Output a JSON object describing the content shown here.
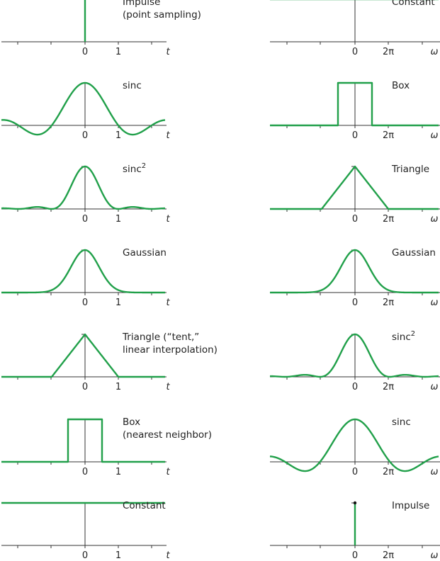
{
  "colors": {
    "curve": "#21a04a",
    "axis": "#333333",
    "text": "#222222"
  },
  "left_column": {
    "axis_variable": "t",
    "tick_labels": [
      "0",
      "1"
    ],
    "panels": [
      {
        "shape": "impulse",
        "title_lines": [
          "Impulse",
          "(point sampling)"
        ]
      },
      {
        "shape": "sinc",
        "title_lines": [
          "sinc"
        ]
      },
      {
        "shape": "sinc2",
        "title_lines": [
          "sinc",
          "2"
        ]
      },
      {
        "shape": "gaussian",
        "title_lines": [
          "Gaussian"
        ]
      },
      {
        "shape": "triangle",
        "title_lines": [
          "Triangle (“tent,”",
          "linear interpolation)"
        ]
      },
      {
        "shape": "box",
        "title_lines": [
          "Box",
          "(nearest neighbor)"
        ]
      },
      {
        "shape": "constant",
        "title_lines": [
          "Constant"
        ]
      }
    ]
  },
  "right_column": {
    "axis_variable": "ω",
    "tick_labels": [
      "0",
      "2π"
    ],
    "panels": [
      {
        "shape": "constant",
        "title_lines": [
          "Constant"
        ]
      },
      {
        "shape": "box",
        "title_lines": [
          "Box"
        ]
      },
      {
        "shape": "triangle",
        "title_lines": [
          "Triangle"
        ]
      },
      {
        "shape": "gaussian",
        "title_lines": [
          "Gaussian"
        ]
      },
      {
        "shape": "sinc2",
        "title_lines": [
          "sinc",
          "2"
        ]
      },
      {
        "shape": "sinc",
        "title_lines": [
          "sinc"
        ]
      },
      {
        "shape": "impulse",
        "title_lines": [
          "Impulse"
        ]
      }
    ]
  }
}
